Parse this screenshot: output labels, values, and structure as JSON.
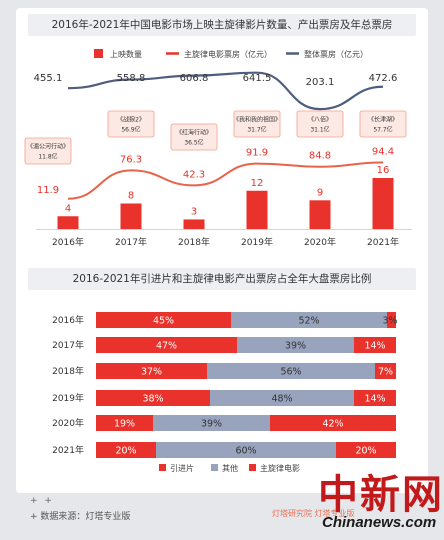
{
  "footer": {
    "plus": "+ +",
    "source": "+ 数据来源：灯塔专业版",
    "brand": "灯塔研究院  灯塔专业版"
  },
  "watermark": {
    "logo": "中新网",
    "site": "Chinanews.com"
  },
  "colors": {
    "red": "#e8322b",
    "orange_line": "#e9624a",
    "navy_line": "#4f5e7e",
    "gray_bar": "#98a3be",
    "callout_fill": "#fde9e4",
    "callout_border": "#f3a08e",
    "text": "#333333"
  },
  "chart_data": [
    {
      "type": "bar+line",
      "title": "2016年-2021年中国电影市场上映主旋律影片数量、产出票房及年总票房",
      "categories": [
        "2016年",
        "2017年",
        "2018年",
        "2019年",
        "2020年",
        "2021年"
      ],
      "legend": [
        "上映数量",
        "主旋律电影票房（亿元）",
        "整体票房（亿元）"
      ],
      "series": [
        {
          "name": "上映数量",
          "kind": "bar",
          "values": [
            4,
            8,
            3,
            12,
            9,
            16
          ]
        },
        {
          "name": "主旋律电影票房（亿元）",
          "kind": "line",
          "values": [
            11.9,
            76.3,
            42.3,
            91.9,
            84.8,
            94.4
          ]
        },
        {
          "name": "整体票房（亿元）",
          "kind": "line",
          "values": [
            455.1,
            558.8,
            606.8,
            641.5,
            203.1,
            472.6
          ]
        }
      ],
      "callouts": [
        {
          "category": "2016年",
          "film": "《湄公河行动》",
          "value": "11.8亿"
        },
        {
          "category": "2017年",
          "film": "《战狼2》",
          "value": "56.9亿"
        },
        {
          "category": "2018年",
          "film": "《红海行动》",
          "value": "36.5亿"
        },
        {
          "category": "2019年",
          "film": "《我和我的祖国》",
          "value": "31.7亿"
        },
        {
          "category": "2020年",
          "film": "《八佰》",
          "value": "31.1亿"
        },
        {
          "category": "2021年",
          "film": "《长津湖》",
          "value": "57.7亿"
        }
      ]
    },
    {
      "type": "bar",
      "stacked": "horizontal-100%",
      "title": "2016-2021年引进片和主旋律电影产出票房占全年大盘票房比例",
      "categories": [
        "2016年",
        "2017年",
        "2018年",
        "2019年",
        "2020年",
        "2021年"
      ],
      "legend": [
        "引进片",
        "其他",
        "主旋律电影"
      ],
      "series": [
        {
          "name": "引进片",
          "values": [
            45,
            47,
            37,
            38,
            19,
            20
          ],
          "labels": [
            "45%",
            "47%",
            "37%",
            "38%",
            "19%",
            "20%"
          ]
        },
        {
          "name": "其他",
          "values": [
            52,
            39,
            56,
            48,
            39,
            60
          ],
          "labels": [
            "52%",
            "39%",
            "56%",
            "48%",
            "39%",
            "60%"
          ]
        },
        {
          "name": "主旋律电影",
          "values": [
            3,
            14,
            7,
            14,
            42,
            20
          ],
          "labels": [
            "3%",
            "14%",
            "7%",
            "14%",
            "42%",
            "20%"
          ]
        }
      ]
    }
  ]
}
